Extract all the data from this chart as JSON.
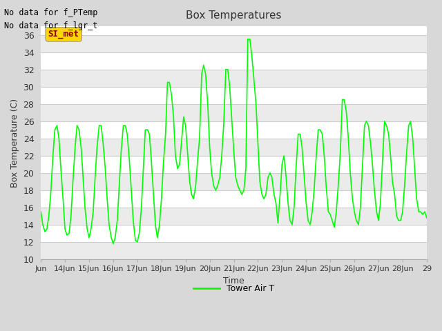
{
  "title": "Box Temperatures",
  "xlabel": "Time",
  "ylabel": "Box Temperature (C)",
  "ylim": [
    10,
    37
  ],
  "yticks": [
    10,
    12,
    14,
    16,
    18,
    20,
    22,
    24,
    26,
    28,
    30,
    32,
    34,
    36
  ],
  "line_color": "#00FF00",
  "line_width": 1.2,
  "bg_color": "#D8D8D8",
  "plot_bg_color": "#FFFFFF",
  "annotation_text1": "No data for f_PTemp",
  "annotation_text2": "No data for f_lgr_t",
  "badge_text": "SI_met",
  "badge_color": "#FFD700",
  "badge_text_color": "#8B0000",
  "legend_label": "Tower Air T",
  "x_start": 13.0,
  "x_end": 29.0,
  "time_data": [
    13.0,
    13.08,
    13.17,
    13.25,
    13.33,
    13.42,
    13.5,
    13.58,
    13.67,
    13.75,
    13.83,
    13.92,
    14.0,
    14.08,
    14.17,
    14.25,
    14.33,
    14.42,
    14.5,
    14.58,
    14.67,
    14.75,
    14.83,
    14.92,
    15.0,
    15.08,
    15.17,
    15.25,
    15.33,
    15.42,
    15.5,
    15.58,
    15.67,
    15.75,
    15.83,
    15.92,
    16.0,
    16.08,
    16.17,
    16.25,
    16.33,
    16.42,
    16.5,
    16.58,
    16.67,
    16.75,
    16.83,
    16.92,
    17.0,
    17.08,
    17.17,
    17.25,
    17.33,
    17.42,
    17.5,
    17.58,
    17.67,
    17.75,
    17.83,
    17.92,
    18.0,
    18.08,
    18.17,
    18.25,
    18.33,
    18.42,
    18.5,
    18.58,
    18.67,
    18.75,
    18.83,
    18.92,
    19.0,
    19.08,
    19.17,
    19.25,
    19.33,
    19.42,
    19.5,
    19.58,
    19.67,
    19.75,
    19.83,
    19.92,
    20.0,
    20.08,
    20.17,
    20.25,
    20.33,
    20.42,
    20.5,
    20.58,
    20.67,
    20.75,
    20.83,
    20.92,
    21.0,
    21.08,
    21.17,
    21.25,
    21.33,
    21.42,
    21.5,
    21.58,
    21.67,
    21.75,
    21.83,
    21.92,
    22.0,
    22.08,
    22.17,
    22.25,
    22.33,
    22.42,
    22.5,
    22.58,
    22.67,
    22.75,
    22.83,
    22.92,
    23.0,
    23.08,
    23.17,
    23.25,
    23.33,
    23.42,
    23.5,
    23.58,
    23.67,
    23.75,
    23.83,
    23.92,
    24.0,
    24.08,
    24.17,
    24.25,
    24.33,
    24.42,
    24.5,
    24.58,
    24.67,
    24.75,
    24.83,
    24.92,
    25.0,
    25.08,
    25.17,
    25.25,
    25.33,
    25.42,
    25.5,
    25.58,
    25.67,
    25.75,
    25.83,
    25.92,
    26.0,
    26.08,
    26.17,
    26.25,
    26.33,
    26.42,
    26.5,
    26.58,
    26.67,
    26.75,
    26.83,
    26.92,
    27.0,
    27.08,
    27.17,
    27.25,
    27.33,
    27.42,
    27.5,
    27.58,
    27.67,
    27.75,
    27.83,
    27.92,
    28.0,
    28.08,
    28.17,
    28.25,
    28.33,
    28.42,
    28.5,
    28.58,
    28.67,
    28.75,
    28.83,
    28.92,
    29.0
  ],
  "temp_data": [
    15.5,
    14.0,
    13.2,
    13.5,
    15.0,
    18.0,
    22.0,
    25.0,
    25.5,
    24.0,
    20.5,
    17.0,
    13.5,
    12.8,
    13.0,
    15.0,
    19.0,
    23.0,
    25.5,
    25.0,
    23.0,
    19.5,
    16.0,
    13.5,
    12.5,
    13.5,
    15.5,
    19.5,
    23.0,
    25.5,
    25.5,
    23.5,
    20.5,
    17.0,
    14.0,
    12.5,
    11.8,
    12.5,
    14.5,
    18.5,
    22.5,
    25.5,
    25.5,
    24.5,
    21.5,
    18.0,
    14.5,
    12.2,
    12.0,
    13.0,
    16.0,
    20.5,
    25.0,
    25.0,
    24.5,
    21.5,
    17.5,
    14.0,
    12.5,
    14.0,
    17.0,
    21.0,
    24.5,
    30.5,
    30.5,
    29.0,
    26.5,
    22.0,
    20.5,
    21.0,
    23.5,
    26.5,
    25.5,
    22.5,
    19.0,
    17.5,
    17.0,
    18.5,
    21.5,
    24.0,
    31.5,
    32.5,
    31.5,
    28.0,
    23.0,
    20.0,
    18.5,
    18.0,
    18.5,
    19.5,
    22.0,
    25.5,
    32.0,
    32.0,
    30.0,
    26.0,
    22.5,
    19.5,
    18.5,
    18.0,
    17.5,
    18.0,
    20.5,
    35.5,
    35.5,
    33.5,
    31.0,
    28.0,
    23.5,
    19.0,
    17.5,
    17.0,
    17.5,
    19.5,
    20.0,
    19.5,
    17.5,
    16.5,
    14.2,
    17.5,
    21.0,
    22.0,
    19.5,
    16.5,
    14.5,
    14.0,
    16.0,
    20.5,
    24.5,
    24.5,
    23.0,
    19.5,
    16.5,
    14.5,
    14.0,
    15.5,
    18.0,
    22.0,
    25.0,
    25.0,
    24.5,
    22.0,
    18.5,
    15.5,
    15.2,
    14.5,
    13.7,
    15.5,
    18.5,
    22.5,
    28.5,
    28.5,
    27.0,
    24.0,
    20.0,
    17.0,
    15.5,
    14.5,
    14.0,
    16.0,
    20.5,
    25.5,
    26.0,
    25.5,
    23.5,
    21.0,
    18.0,
    15.5,
    14.5,
    16.5,
    21.5,
    26.0,
    25.5,
    24.5,
    22.0,
    19.0,
    17.5,
    15.0,
    14.5,
    14.5,
    15.5,
    18.5,
    22.5,
    25.5,
    26.0,
    24.0,
    20.5,
    17.0,
    15.5,
    15.5,
    15.2,
    15.5,
    14.8
  ],
  "xtick_positions": [
    13,
    14,
    15,
    16,
    17,
    18,
    19,
    20,
    21,
    22,
    23,
    24,
    25,
    26,
    27,
    28,
    29
  ],
  "xtick_labels": [
    "Jun",
    "14Jun",
    "15Jun",
    "16Jun",
    "17Jun",
    "18Jun",
    "19Jun",
    "20Jun",
    "21Jun",
    "22Jun",
    "23Jun",
    "24Jun",
    "25Jun",
    "26Jun",
    "27Jun",
    "28Jun",
    "29"
  ]
}
